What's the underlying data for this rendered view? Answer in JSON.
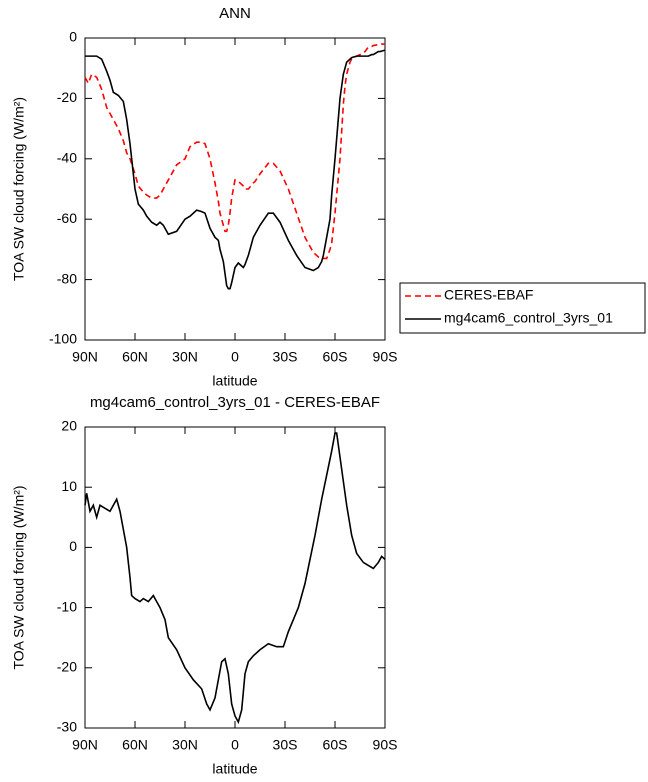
{
  "chart_data": [
    {
      "type": "line",
      "title": "ANN",
      "x_label": "latitude",
      "y_label": "TOA SW cloud forcing (W/m²)",
      "xlim": [
        90,
        -90
      ],
      "ylim": [
        -100,
        0
      ],
      "xticks": [
        {
          "value": 90,
          "label": "90N"
        },
        {
          "value": 60,
          "label": "60N"
        },
        {
          "value": 30,
          "label": "30N"
        },
        0,
        {
          "value": -30,
          "label": "30S"
        },
        {
          "value": -60,
          "label": "60S"
        },
        {
          "value": -90,
          "label": "90S"
        }
      ],
      "yticks": [
        0,
        -20,
        -40,
        -60,
        -80,
        -100
      ],
      "legend": "right",
      "x": [
        90,
        88,
        86,
        83,
        80,
        77,
        75,
        73,
        70,
        67,
        65,
        63,
        60,
        58,
        55,
        53,
        50,
        47,
        45,
        43,
        40,
        35,
        30,
        27,
        23,
        20,
        18,
        15,
        12,
        10,
        9,
        7,
        6,
        5,
        4,
        3,
        2,
        0,
        -2,
        -3,
        -5,
        -6,
        -8,
        -11,
        -12,
        -15,
        -20,
        -23,
        -27,
        -32,
        -37,
        -42,
        -47,
        -50,
        -52,
        -53,
        -55,
        -57,
        -58,
        -60,
        -63,
        -65,
        -66,
        -67,
        -69,
        -70,
        -73,
        -77,
        -78,
        -80,
        -82,
        -83,
        -86,
        -87,
        -90
      ],
      "series": [
        {
          "name": "CERES-EBAF",
          "color": "#ff0000",
          "line_style": "dashed",
          "values": [
            -13,
            -15,
            -12,
            -13,
            -17,
            -23,
            -25,
            -27,
            -30,
            -34,
            -38,
            -40,
            -45,
            -49,
            -51,
            -52,
            -53,
            -53,
            -52,
            -50,
            -47,
            -42,
            -40,
            -36,
            -34.5,
            -34.5,
            -35,
            -40,
            -48,
            -54,
            -58,
            -62,
            -64,
            -64,
            -62,
            -58,
            -53,
            -47,
            -47.5,
            -48,
            -49,
            -50,
            -50,
            -48,
            -47.5,
            -45,
            -41.5,
            -41.5,
            -44,
            -50,
            -58,
            -66,
            -71,
            -72.5,
            -73,
            -73,
            -73,
            -70,
            -68,
            -58,
            -40,
            -22,
            -16,
            -12,
            -8,
            -7,
            -6,
            -5,
            -4.5,
            -3,
            -2.8,
            -2.5,
            -2.2,
            -2,
            -2
          ]
        },
        {
          "name": "mg4cam6_control_3yrs_01",
          "color": "#000000",
          "line_style": "solid",
          "values": [
            -6,
            -6,
            -6,
            -6,
            -7,
            -11,
            -14,
            -18,
            -19,
            -21,
            -27,
            -35,
            -50,
            -55,
            -57,
            -59,
            -61,
            -62,
            -61,
            -62,
            -65,
            -64,
            -60,
            -59,
            -57,
            -57.5,
            -58,
            -63,
            -66,
            -67,
            -70,
            -74,
            -78,
            -82,
            -83,
            -83,
            -81,
            -76,
            -74.5,
            -75,
            -76,
            -75,
            -72,
            -66,
            -65,
            -62,
            -58,
            -58,
            -61,
            -67,
            -72,
            -76,
            -77,
            -76,
            -74,
            -72,
            -66,
            -60,
            -52,
            -40,
            -20,
            -12,
            -10,
            -8,
            -7,
            -6.5,
            -6,
            -6,
            -6,
            -6,
            -5.5,
            -5.5,
            -4.5,
            -4.5,
            -4
          ]
        }
      ]
    },
    {
      "type": "line",
      "title": "mg4cam6_control_3yrs_01 - CERES-EBAF",
      "x_label": "latitude",
      "y_label": "TOA SW cloud forcing (W/m²)",
      "xlim": [
        90,
        -90
      ],
      "ylim": [
        -30,
        20
      ],
      "xticks": [
        {
          "value": 90,
          "label": "90N"
        },
        {
          "value": 60,
          "label": "60N"
        },
        {
          "value": 30,
          "label": "30N"
        },
        0,
        {
          "value": -30,
          "label": "30S"
        },
        {
          "value": -60,
          "label": "60S"
        },
        {
          "value": -90,
          "label": "90S"
        }
      ],
      "yticks": [
        20,
        10,
        0,
        -10,
        -20,
        -30
      ],
      "x": [
        90,
        89,
        87,
        85,
        83,
        81,
        78,
        75,
        73,
        71,
        69,
        67,
        65,
        63,
        62,
        60,
        57,
        55,
        52,
        49,
        47,
        45,
        42,
        40,
        35,
        30,
        25,
        20,
        17,
        15,
        12,
        10,
        8,
        6,
        4,
        2,
        0,
        -2,
        -4,
        -6,
        -8,
        -11,
        -15,
        -20,
        -25,
        -29,
        -32,
        -35,
        -38,
        -42,
        -45,
        -48,
        -52,
        -55,
        -58,
        -60,
        -61,
        -63,
        -65,
        -67,
        -70,
        -73,
        -77,
        -80,
        -83,
        -86,
        -88,
        -90
      ],
      "series": [
        {
          "color": "#000000",
          "line_style": "solid",
          "values": [
            7,
            9,
            6,
            7,
            5,
            7,
            6.5,
            6,
            7,
            8,
            6,
            3,
            0,
            -5,
            -8,
            -8.5,
            -9,
            -8.5,
            -9,
            -8,
            -9,
            -10,
            -12,
            -15,
            -17,
            -20,
            -22,
            -23.5,
            -26,
            -27,
            -25,
            -22,
            -19,
            -18.5,
            -21,
            -26,
            -28,
            -29,
            -27,
            -21,
            -19,
            -18,
            -17,
            -16,
            -16.5,
            -16.5,
            -14,
            -12,
            -10,
            -6,
            -2,
            2,
            8,
            12,
            16,
            19,
            19,
            15,
            11,
            7,
            2,
            -1,
            -2.5,
            -3,
            -3.5,
            -2.5,
            -1.5,
            -2
          ]
        }
      ]
    }
  ]
}
